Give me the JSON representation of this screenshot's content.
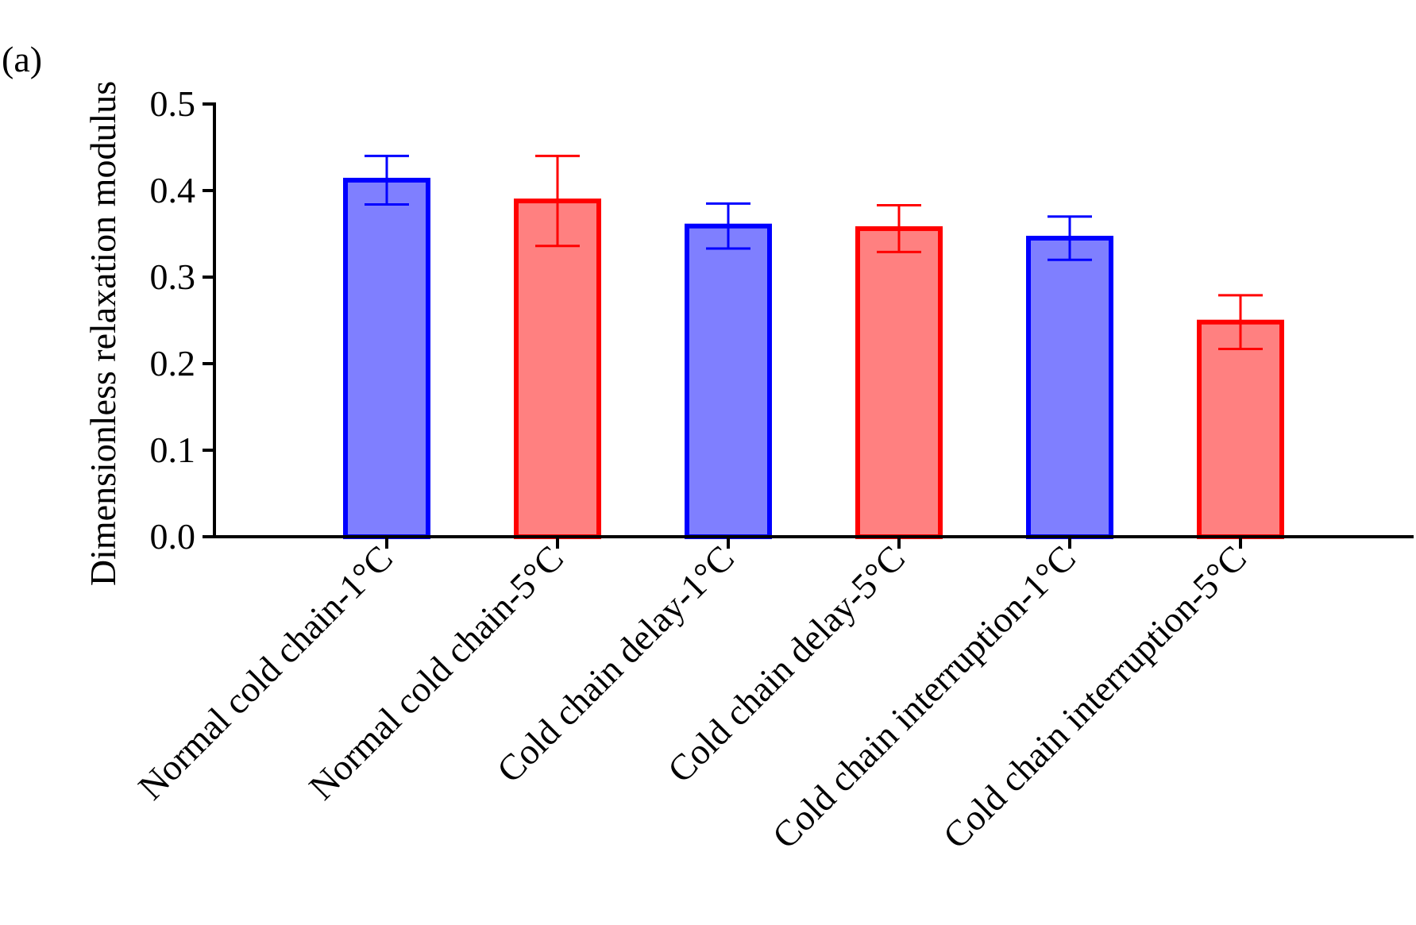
{
  "panel_label": "(a)",
  "chart_data": {
    "type": "bar",
    "title": "",
    "xlabel": "",
    "ylabel": "Dimensionless relaxation modulus",
    "ylim": [
      0,
      0.5
    ],
    "yticks": [
      0.0,
      0.1,
      0.2,
      0.3,
      0.4,
      0.5
    ],
    "ytick_labels": [
      "0.0",
      "0.1",
      "0.2",
      "0.3",
      "0.4",
      "0.5"
    ],
    "grid": false,
    "legend": "none",
    "categories": [
      "Normal cold chain-1°C",
      "Normal cold chain-5°C",
      "Cold chain delay-1°C",
      "Cold chain delay-5°C",
      "Cold chain interruption-1°C",
      "Cold chain interruption-5°C"
    ],
    "values": [
      0.412,
      0.388,
      0.359,
      0.356,
      0.345,
      0.248
    ],
    "errors": [
      0.028,
      0.052,
      0.026,
      0.027,
      0.025,
      0.031
    ],
    "colors": {
      "blue_fill": "#7f7fff",
      "blue_edge": "#0000ff",
      "red_fill": "#ff8080",
      "red_edge": "#ff0000",
      "axis": "#000000"
    },
    "bar_color_keys": [
      "blue",
      "red",
      "blue",
      "red",
      "blue",
      "red"
    ]
  }
}
